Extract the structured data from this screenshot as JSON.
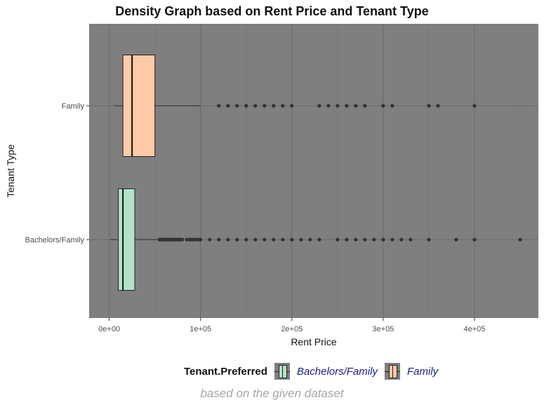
{
  "chart_data": {
    "type": "boxplot",
    "orientation": "horizontal",
    "title": "Density Graph based on Rent Price and Tenant Type",
    "xlabel": "Rent Price",
    "ylabel": "Tenant Type",
    "xlim": [
      -22000,
      470000
    ],
    "x_ticks": [
      0,
      100000,
      200000,
      300000,
      400000
    ],
    "x_tick_labels": [
      "0e+00",
      "1e+05",
      "2e+05",
      "3e+05",
      "4e+05"
    ],
    "categories": [
      "Family",
      "Bachelors/Family"
    ],
    "grid": true,
    "legend_title": "Tenant.Preferred",
    "legend_position": "bottom",
    "series": [
      {
        "name": "Family",
        "color": "#ffcaa8",
        "whisker_low": 5000,
        "q1": 15000,
        "median": 25000,
        "q3": 50000,
        "whisker_high": 100000,
        "outliers": [
          120000,
          130000,
          140000,
          150000,
          160000,
          170000,
          180000,
          190000,
          200000,
          230000,
          240000,
          250000,
          260000,
          270000,
          280000,
          300000,
          310000,
          350000,
          360000,
          400000
        ]
      },
      {
        "name": "Bachelors/Family",
        "color": "#b2e2c8",
        "whisker_low": 1000,
        "q1": 10000,
        "median": 15000,
        "q3": 28000,
        "whisker_high": 55000,
        "outliers": [
          55000,
          56000,
          57000,
          58000,
          59000,
          60000,
          61000,
          62000,
          63000,
          64000,
          65000,
          66000,
          67000,
          68000,
          69000,
          70000,
          72000,
          74000,
          75000,
          76000,
          78000,
          80000,
          85000,
          88000,
          90000,
          92000,
          95000,
          98000,
          100000,
          110000,
          120000,
          130000,
          140000,
          150000,
          160000,
          170000,
          180000,
          190000,
          200000,
          210000,
          220000,
          230000,
          250000,
          260000,
          270000,
          280000,
          290000,
          300000,
          310000,
          320000,
          330000,
          350000,
          380000,
          400000,
          450000
        ]
      }
    ]
  },
  "caption": "based on the given dataset"
}
